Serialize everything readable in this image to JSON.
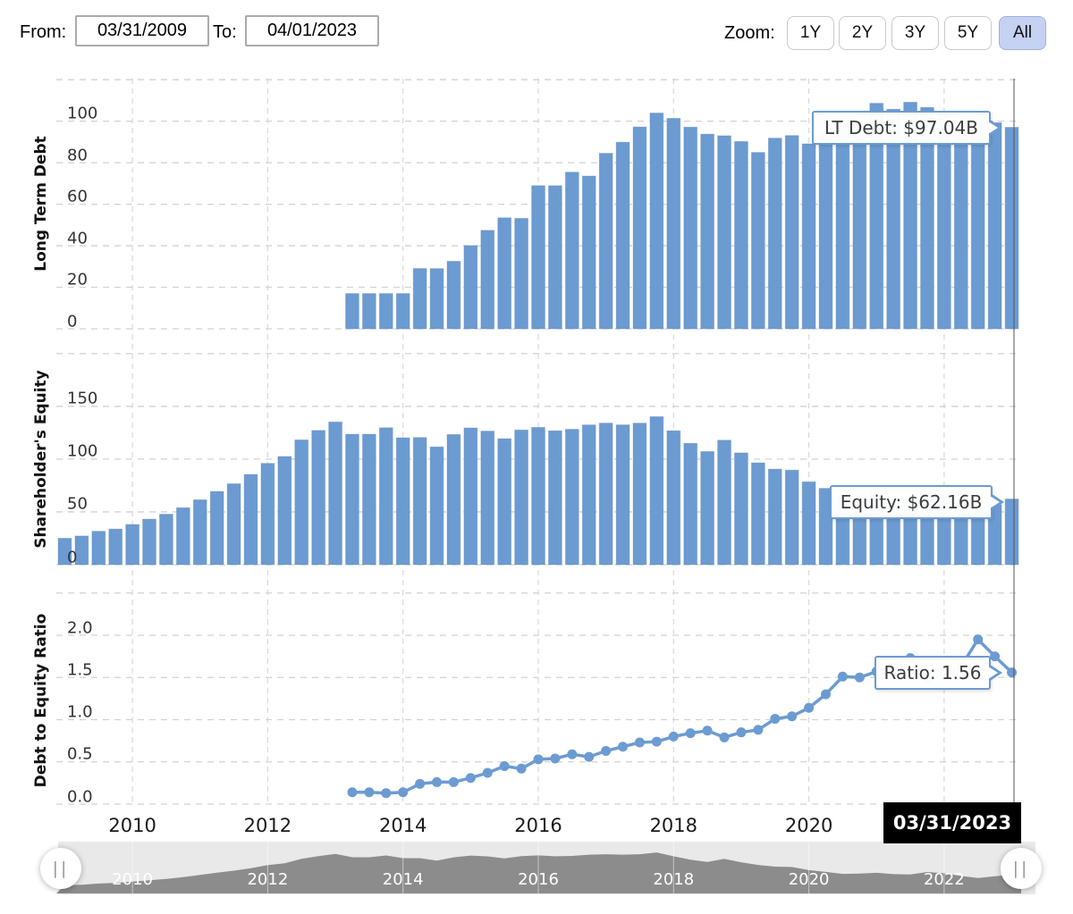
{
  "header": {
    "from_label": "From:",
    "from_value": "03/31/2009",
    "to_label": "To:",
    "to_value": "04/01/2023",
    "zoom_label": "Zoom:",
    "zoom_buttons": [
      {
        "label": "1Y",
        "active": false
      },
      {
        "label": "2Y",
        "active": false
      },
      {
        "label": "3Y",
        "active": false
      },
      {
        "label": "5Y",
        "active": false
      },
      {
        "label": "All",
        "active": true
      }
    ]
  },
  "tooltips": {
    "lt_debt": "LT Debt: $97.04B",
    "equity": "Equity: $62.16B",
    "ratio": "Ratio: 1.56"
  },
  "crosshair_date": "03/31/2023",
  "colors": {
    "bar_fill": "#6c9bd2",
    "bar_edge": "#4f7fb5",
    "line": "#6c9bd2",
    "grid": "#d2d2d2",
    "grid_vertical": "#d9d9d9",
    "crosshair": "#555555",
    "nav_bg": "#e9e9e9",
    "nav_area": "#8c8c8c",
    "active_button_bg": "#c6d2f1",
    "flag_bg": "#000000"
  },
  "x_axis": {
    "year_ticks": [
      2010,
      2012,
      2014,
      2016,
      2018,
      2020,
      2022
    ],
    "range_start": "2009-Q1",
    "range_end": "2023-Q1",
    "period": "quarterly"
  },
  "chart_data": [
    {
      "type": "bar",
      "title": "Long Term Debt",
      "ylabel": "Long Term Debt",
      "unit": "$B",
      "yticks": [
        0,
        20,
        40,
        60,
        80,
        100
      ],
      "ylim": [
        0,
        120
      ],
      "grid": true,
      "first_period": "2013-Q2",
      "start_index": 17,
      "values": [
        16.96,
        16.96,
        16.96,
        16.96,
        29.03,
        28.99,
        32.5,
        40.07,
        47.42,
        53.46,
        53.2,
        68.94,
        68.91,
        75.43,
        73.56,
        84.53,
        89.86,
        97.21,
        103.92,
        101.36,
        97.13,
        93.74,
        92.99,
        90.2,
        84.94,
        91.81,
        93.08,
        89.09,
        94.05,
        98.67,
        99.28,
        108.61,
        105.75,
        109.11,
        106.63,
        103.32,
        94.7,
        98.96,
        99.28,
        97.04
      ],
      "last_value_label": "LT Debt: $97.04B"
    },
    {
      "type": "bar",
      "title": "Shareholder's Equity",
      "ylabel": "Shareholder's Equity",
      "unit": "$B",
      "yticks": [
        0,
        50,
        100,
        150
      ],
      "ylim": [
        0,
        200
      ],
      "grid": true,
      "first_period": "2009-Q1",
      "start_index": 0,
      "values": [
        24.97,
        27.17,
        31.64,
        33.72,
        38.05,
        43.11,
        47.79,
        53.93,
        61.48,
        69.34,
        76.62,
        85.45,
        95.94,
        102.49,
        118.21,
        127.14,
        135.19,
        123.55,
        123.55,
        129.69,
        120.18,
        120.46,
        111.55,
        123.28,
        129.52,
        126.5,
        119.36,
        127.62,
        130.05,
        126.85,
        128.25,
        132.39,
        134.08,
        132.43,
        134.05,
        140.2,
        126.88,
        114.95,
        107.15,
        117.89,
        105.86,
        96.46,
        90.49,
        89.53,
        78.43,
        72.28,
        65.34,
        66.22,
        69.18,
        64.28,
        63.09,
        71.93,
        67.4,
        58.11,
        50.67,
        56.73,
        62.16
      ],
      "last_value_label": "Equity: $62.16B"
    },
    {
      "type": "line",
      "title": "Debt to Equity Ratio",
      "ylabel": "Debt to Equity Ratio",
      "unit": "ratio",
      "yticks": [
        0.0,
        0.5,
        1.0,
        1.5,
        2.0
      ],
      "ylim": [
        0,
        2.5
      ],
      "grid": true,
      "first_period": "2013-Q2",
      "start_index": 17,
      "values": [
        0.14,
        0.14,
        0.13,
        0.14,
        0.24,
        0.26,
        0.26,
        0.31,
        0.37,
        0.45,
        0.42,
        0.53,
        0.54,
        0.59,
        0.56,
        0.63,
        0.68,
        0.73,
        0.74,
        0.8,
        0.84,
        0.87,
        0.79,
        0.85,
        0.88,
        1.01,
        1.04,
        1.14,
        1.3,
        1.51,
        1.5,
        1.57,
        1.64,
        1.73,
        1.48,
        1.53,
        1.63,
        1.95,
        1.75,
        1.56
      ],
      "last_value_label": "Ratio: 1.56"
    }
  ],
  "navigator": {
    "year_labels": [
      2010,
      2012,
      2014,
      2016,
      2018,
      2020,
      2022
    ],
    "series": "Shareholder's Equity",
    "handle_glyph": "||"
  }
}
